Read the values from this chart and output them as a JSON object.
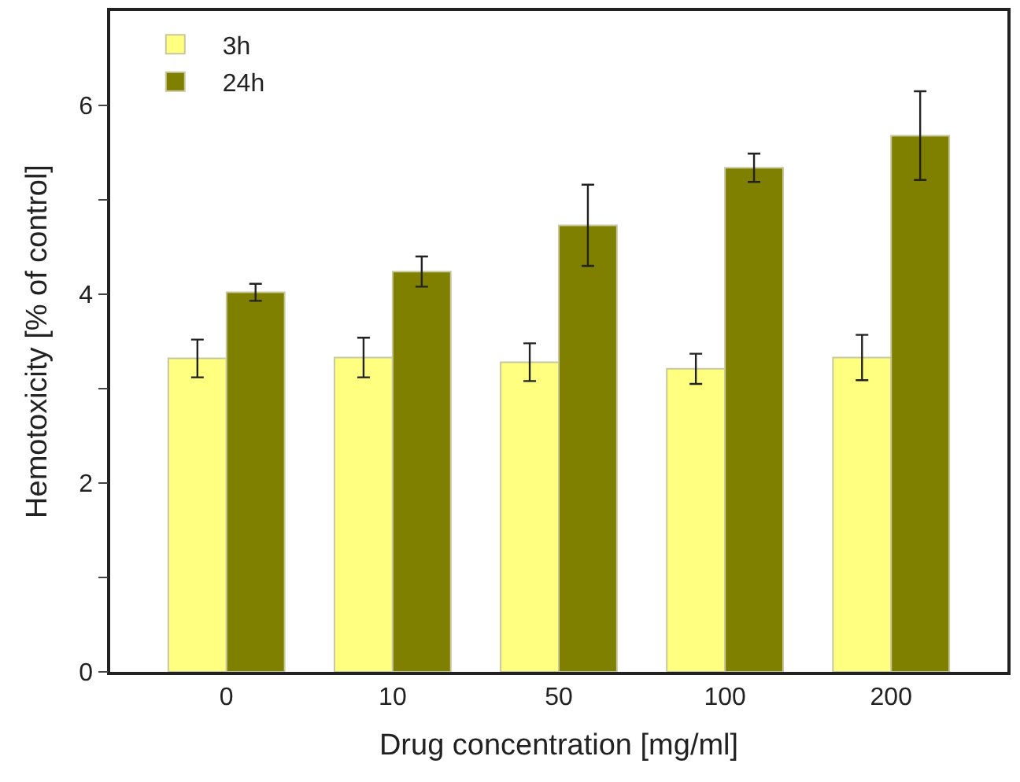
{
  "chart_data": {
    "type": "bar",
    "xlabel": "Drug concentration [mg/ml]",
    "ylabel": "Hemotoxicity [% of control]",
    "categories": [
      "0",
      "10",
      "50",
      "100",
      "200"
    ],
    "series": [
      {
        "name": "3h",
        "color": "#ffff80",
        "values": [
          3.32,
          3.33,
          3.28,
          3.21,
          3.33
        ],
        "errors": [
          0.2,
          0.21,
          0.2,
          0.16,
          0.24
        ]
      },
      {
        "name": "24h",
        "color": "#808000",
        "values": [
          4.02,
          4.24,
          4.73,
          5.34,
          5.68
        ],
        "errors": [
          0.09,
          0.16,
          0.43,
          0.15,
          0.47
        ]
      }
    ],
    "ylim": [
      0,
      7
    ],
    "yticks": [
      0,
      {
        "value": 1,
        "label": null
      },
      2,
      {
        "value": 3,
        "label": null
      },
      4,
      {
        "value": 5,
        "label": null
      },
      6
    ],
    "legend": "top left"
  }
}
